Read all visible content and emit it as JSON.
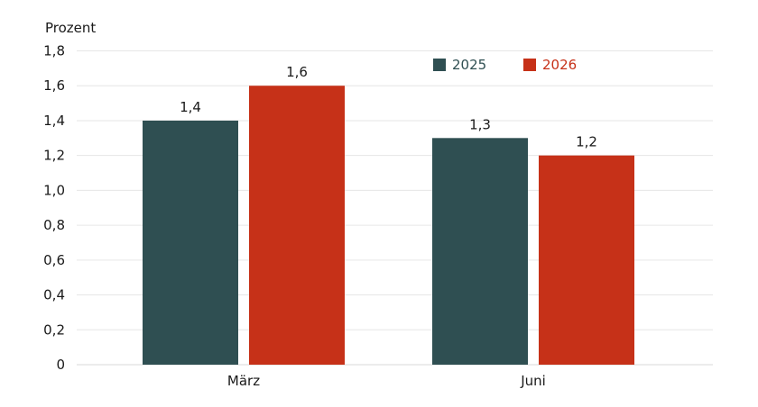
{
  "chart_data": {
    "type": "bar",
    "title": "",
    "xlabel": "",
    "ylabel": "Prozent",
    "categories": [
      "März",
      "Juni"
    ],
    "series": [
      {
        "name": "2025",
        "values": [
          1.4,
          1.3
        ],
        "color": "#2f4f52"
      },
      {
        "name": "2026",
        "values": [
          1.6,
          1.2
        ],
        "color": "#c63118"
      }
    ],
    "ylim": [
      0,
      1.8
    ],
    "yticks": [
      0,
      0.2,
      0.4,
      0.6,
      0.8,
      1.0,
      1.2,
      1.4,
      1.6,
      1.8
    ],
    "ytick_labels": [
      "0",
      "0,2",
      "0,4",
      "0,6",
      "0,8",
      "1,0",
      "1,2",
      "1,4",
      "1,6",
      "1,8"
    ],
    "data_labels": [
      [
        "1,4",
        "1,3"
      ],
      [
        "1,6",
        "1,2"
      ]
    ],
    "grid": true,
    "legend": "top-right"
  }
}
